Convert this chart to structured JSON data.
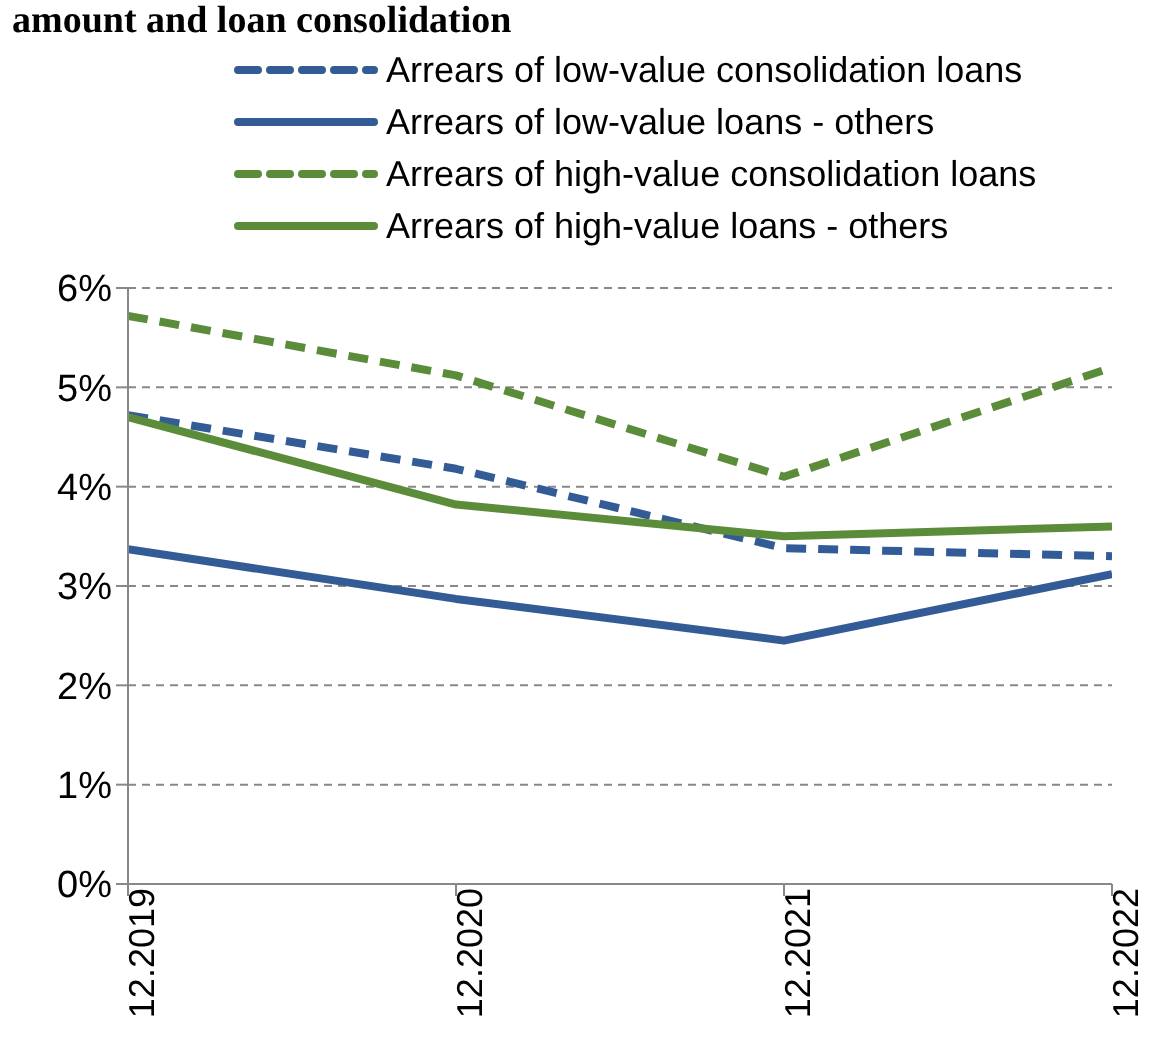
{
  "chart_data": {
    "type": "line",
    "title": "amount and loan consolidation",
    "categories": [
      "12.2019",
      "12.2020",
      "12.2021",
      "12.2022"
    ],
    "series": [
      {
        "name": "Arrears of low-value consolidation loans",
        "color": "#335c96",
        "line_style": "dashed",
        "values": [
          4.72,
          4.18,
          3.38,
          3.3
        ]
      },
      {
        "name": "Arrears of low-value loans - others",
        "color": "#335c96",
        "line_style": "solid",
        "values": [
          3.37,
          2.87,
          2.45,
          3.12
        ]
      },
      {
        "name": "Arrears of high-value consolidation loans",
        "color": "#5b8c3a",
        "line_style": "dashed",
        "values": [
          5.72,
          5.12,
          4.1,
          5.2
        ]
      },
      {
        "name": "Arrears of high-value loans - others",
        "color": "#5b8c3a",
        "line_style": "solid",
        "values": [
          4.7,
          3.82,
          3.5,
          3.6
        ]
      }
    ],
    "ylim": [
      0,
      6
    ],
    "yticks": [
      {
        "value": 0,
        "label": "0%"
      },
      {
        "value": 1,
        "label": "1%"
      },
      {
        "value": 2,
        "label": "2%"
      },
      {
        "value": 3,
        "label": "3%"
      },
      {
        "value": 4,
        "label": "4%"
      },
      {
        "value": 5,
        "label": "5%"
      },
      {
        "value": 6,
        "label": "6%"
      }
    ],
    "grid": "y",
    "legend": "top",
    "marker": "none"
  }
}
